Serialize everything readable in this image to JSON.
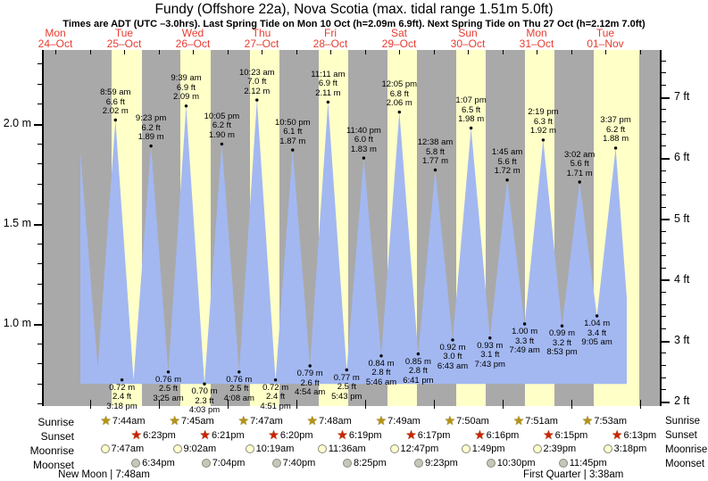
{
  "title": "Fundy (Offshore 22a), Nova Scotia (max. tidal range 1.51m 5.0ft)",
  "subtitle": "Times are ADT (UTC –3.0hrs). Last Spring Tide on Mon 10 Oct (h=2.09m 6.9ft). Next Spring Tide on Thu 27 Oct (h=2.12m 7.0ft)",
  "colors": {
    "night_band": "#a9a9a9",
    "day_band": "#ffffc8",
    "water": "#a3b8f1",
    "date_red": "#e73c30",
    "sunrise_star": "#b49310",
    "sunset_star": "#cc2200",
    "moonrise_fill": "#ffffd0",
    "moonset_fill": "#c6c6ba",
    "marker_border": "#8a8a78"
  },
  "days": [
    {
      "dow": "Mon",
      "date": "24–Oct"
    },
    {
      "dow": "Tue",
      "date": "25–Oct"
    },
    {
      "dow": "Wed",
      "date": "26–Oct"
    },
    {
      "dow": "Thu",
      "date": "27–Oct"
    },
    {
      "dow": "Fri",
      "date": "28–Oct"
    },
    {
      "dow": "Sat",
      "date": "29–Oct"
    },
    {
      "dow": "Sun",
      "date": "30–Oct"
    },
    {
      "dow": "Mon",
      "date": "31–Oct"
    },
    {
      "dow": "Tue",
      "date": "01–Nov"
    }
  ],
  "axes": {
    "left_unit": "m",
    "left_labels": [
      {
        "text": "2.0 m",
        "m": 2.0
      },
      {
        "text": "1.5 m",
        "m": 1.5
      },
      {
        "text": "1.0 m",
        "m": 1.0
      }
    ],
    "right_unit": "ft",
    "right_labels": [
      {
        "text": "7 ft",
        "ft": 7
      },
      {
        "text": "6 ft",
        "ft": 6
      },
      {
        "text": "5 ft",
        "ft": 5
      },
      {
        "text": "4 ft",
        "ft": 4
      },
      {
        "text": "3 ft",
        "ft": 3
      },
      {
        "text": "2 ft",
        "ft": 2
      }
    ]
  },
  "chart_data": {
    "type": "area",
    "title": "Tide height, metres vs time (9 days, Mon 24-Oct to Tue 01-Nov)",
    "y_range_m": [
      0.59,
      2.37
    ],
    "baseline_m": 0.7,
    "start_event": {
      "kind": "high",
      "t": 0.8639,
      "m": 1.86
    },
    "end_point": {
      "t": 8.8117,
      "m": 1.13
    },
    "tide_events": [
      {
        "kind": "high",
        "t": 0.8639,
        "m": 1.86
      },
      {
        "kind": "low",
        "t": 1.1174,
        "m": 0.78
      },
      {
        "kind": "high",
        "t": 1.37431,
        "m": 2.02,
        "time": "8:59 am",
        "ft": "6.6 ft",
        "mlab": "2.02 m"
      },
      {
        "kind": "low",
        "t": 1.6375,
        "m": 0.72,
        "time": "3:18 pm",
        "ft": "2.4 ft",
        "mlab": "0.72 m"
      },
      {
        "kind": "high",
        "t": 1.89097,
        "m": 1.89,
        "time": "9:23 pm",
        "ft": "6.2 ft",
        "mlab": "1.89 m"
      },
      {
        "kind": "low",
        "t": 2.14236,
        "m": 0.76,
        "time": "3:25 am",
        "ft": "2.5 ft",
        "mlab": "0.76 m"
      },
      {
        "kind": "high",
        "t": 2.40208,
        "m": 2.09,
        "time": "9:39 am",
        "ft": "6.9 ft",
        "mlab": "2.09 m"
      },
      {
        "kind": "low",
        "t": 2.66875,
        "m": 0.7,
        "time": "4:03 pm",
        "ft": "2.3 ft",
        "mlab": "0.70 m"
      },
      {
        "kind": "high",
        "t": 2.92014,
        "m": 1.9,
        "time": "10:05 pm",
        "ft": "6.2 ft",
        "mlab": "1.90 m"
      },
      {
        "kind": "low",
        "t": 3.17222,
        "m": 0.76,
        "time": "4:08 am",
        "ft": "2.5 ft",
        "mlab": "0.76 m"
      },
      {
        "kind": "high",
        "t": 3.43264,
        "m": 2.12,
        "time": "10:23 am",
        "ft": "7.0 ft",
        "mlab": "2.12 m"
      },
      {
        "kind": "low",
        "t": 3.70208,
        "m": 0.72,
        "time": "4:51 pm",
        "ft": "2.4 ft",
        "mlab": "0.72 m"
      },
      {
        "kind": "high",
        "t": 3.95139,
        "m": 1.87,
        "time": "10:50 pm",
        "ft": "6.1 ft",
        "mlab": "1.87 m"
      },
      {
        "kind": "low",
        "t": 4.20417,
        "m": 0.79,
        "time": "4:54 am",
        "ft": "2.6 ft",
        "mlab": "0.79 m"
      },
      {
        "kind": "high",
        "t": 4.46597,
        "m": 2.11,
        "time": "11:11 am",
        "ft": "6.9 ft",
        "mlab": "2.11 m"
      },
      {
        "kind": "low",
        "t": 4.73819,
        "m": 0.77,
        "time": "5:43 pm",
        "ft": "2.5 ft",
        "mlab": "0.77 m"
      },
      {
        "kind": "high",
        "t": 4.98611,
        "m": 1.83,
        "time": "11:40 pm",
        "ft": "6.0 ft",
        "mlab": "1.83 m"
      },
      {
        "kind": "low",
        "t": 5.24028,
        "m": 0.84,
        "time": "5:46 am",
        "ft": "2.8 ft",
        "mlab": "0.84 m"
      },
      {
        "kind": "high",
        "t": 5.50347,
        "m": 2.06,
        "time": "12:05 pm",
        "ft": "6.8 ft",
        "mlab": "2.06 m"
      },
      {
        "kind": "low",
        "t": 5.77847,
        "m": 0.85,
        "time": "6:41 pm",
        "ft": "2.8 ft",
        "mlab": "0.85 m"
      },
      {
        "kind": "high",
        "t": 6.02639,
        "m": 1.77,
        "time": "12:38 am",
        "ft": "5.8 ft",
        "mlab": "1.77 m"
      },
      {
        "kind": "low",
        "t": 6.27986,
        "m": 0.92,
        "time": "6:43 am",
        "ft": "3.0 ft",
        "mlab": "0.92 m"
      },
      {
        "kind": "high",
        "t": 6.54653,
        "m": 1.98,
        "time": "1:07 pm",
        "ft": "6.5 ft",
        "mlab": "1.98 m"
      },
      {
        "kind": "low",
        "t": 6.82153,
        "m": 0.93,
        "time": "7:43 pm",
        "ft": "3.1 ft",
        "mlab": "0.93 m"
      },
      {
        "kind": "high",
        "t": 7.07292,
        "m": 1.72,
        "time": "1:45 am",
        "ft": "5.6 ft",
        "mlab": "1.72 m"
      },
      {
        "kind": "low",
        "t": 7.32569,
        "m": 1.0,
        "time": "7:49 am",
        "ft": "3.3 ft",
        "mlab": "1.00 m"
      },
      {
        "kind": "high",
        "t": 7.59653,
        "m": 1.92,
        "time": "2:19 pm",
        "ft": "6.3 ft",
        "mlab": "1.92 m"
      },
      {
        "kind": "low",
        "t": 7.87014,
        "m": 0.99,
        "time": "8:53 pm",
        "ft": "3.2 ft",
        "mlab": "0.99 m"
      },
      {
        "kind": "high",
        "t": 8.12639,
        "m": 1.71,
        "time": "3:02 am",
        "ft": "5.6 ft",
        "mlab": "1.71 m"
      },
      {
        "kind": "low",
        "t": 8.37847,
        "m": 1.04,
        "time": "9:05 am",
        "ft": "3.4 ft",
        "mlab": "1.04 m"
      },
      {
        "kind": "high",
        "t": 8.65069,
        "m": 1.88,
        "time": "3:37 pm",
        "ft": "6.2 ft",
        "mlab": "1.88 m"
      }
    ]
  },
  "almanac": {
    "row_labels": [
      "Sunrise",
      "Sunset",
      "Moonrise",
      "Moonset"
    ],
    "sunrise": [
      {
        "t": 1.32222,
        "time": "7:44am"
      },
      {
        "t": 2.32292,
        "time": "7:45am"
      },
      {
        "t": 3.32431,
        "time": "7:47am"
      },
      {
        "t": 4.325,
        "time": "7:48am"
      },
      {
        "t": 5.32569,
        "time": "7:49am"
      },
      {
        "t": 6.32639,
        "time": "7:50am"
      },
      {
        "t": 7.32708,
        "time": "7:51am"
      },
      {
        "t": 8.32847,
        "time": "7:53am"
      }
    ],
    "sunset": [
      {
        "t": 1.76597,
        "time": "6:23pm"
      },
      {
        "t": 2.76458,
        "time": "6:21pm"
      },
      {
        "t": 3.76389,
        "time": "6:20pm"
      },
      {
        "t": 4.76319,
        "time": "6:19pm"
      },
      {
        "t": 5.76181,
        "time": "6:17pm"
      },
      {
        "t": 6.76111,
        "time": "6:16pm"
      },
      {
        "t": 7.76042,
        "time": "6:15pm"
      },
      {
        "t": 8.75903,
        "time": "6:13pm"
      }
    ],
    "moonrise": [
      {
        "t": 1.32431,
        "time": "7:47am"
      },
      {
        "t": 2.37639,
        "time": "9:02am"
      },
      {
        "t": 3.42986,
        "time": "10:19am"
      },
      {
        "t": 4.48333,
        "time": "11:36am"
      },
      {
        "t": 5.53264,
        "time": "12:47pm"
      },
      {
        "t": 6.57569,
        "time": "1:49pm"
      },
      {
        "t": 7.61042,
        "time": "2:39pm"
      },
      {
        "t": 8.6375,
        "time": "3:18pm"
      }
    ],
    "moonset": [
      {
        "t": 1.77361,
        "time": "6:34pm"
      },
      {
        "t": 2.79444,
        "time": "7:04pm"
      },
      {
        "t": 3.81944,
        "time": "7:40pm"
      },
      {
        "t": 4.85069,
        "time": "8:25pm"
      },
      {
        "t": 5.89097,
        "time": "9:23pm"
      },
      {
        "t": 6.9375,
        "time": "10:30pm"
      },
      {
        "t": 7.98958,
        "time": "11:45pm"
      }
    ],
    "phases": [
      {
        "t": 1.325,
        "text": "New Moon | 7:48am"
      },
      {
        "t": 8.15139,
        "text": "First Quarter | 3:38am"
      }
    ]
  }
}
